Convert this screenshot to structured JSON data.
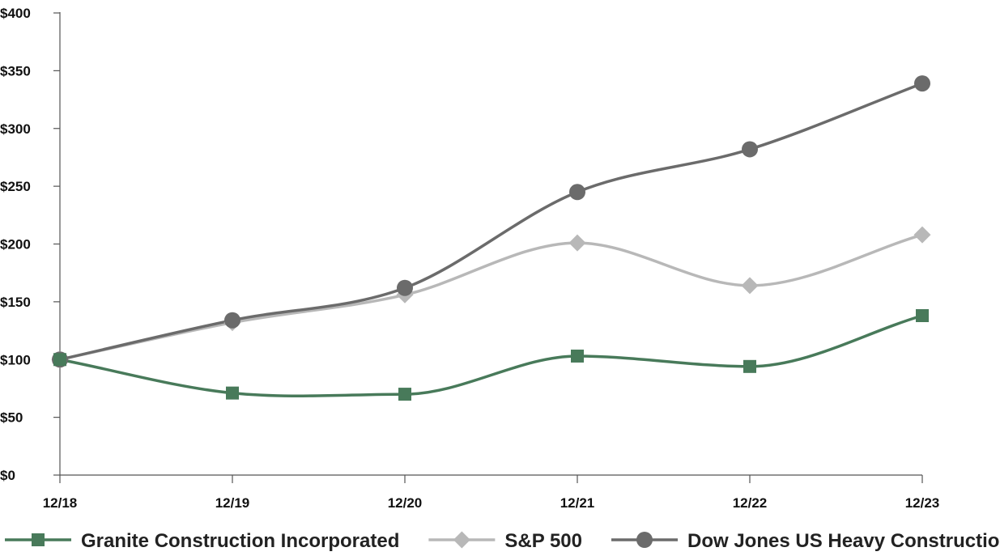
{
  "chart_data": {
    "type": "line",
    "categories": [
      "12/18",
      "12/19",
      "12/20",
      "12/21",
      "12/22",
      "12/23"
    ],
    "y_tick_labels": [
      "$0",
      "$50",
      "$100",
      "$150",
      "$200",
      "$250",
      "$300",
      "$350",
      "$400"
    ],
    "y_ticks": [
      0,
      50,
      100,
      150,
      200,
      250,
      300,
      350,
      400
    ],
    "ylim": [
      0,
      400
    ],
    "grid": false,
    "legend_position": "bottom",
    "series": [
      {
        "name": "Granite Construction Incorporated",
        "values": [
          100,
          71,
          70,
          103,
          94,
          138
        ],
        "color": "#487a5a",
        "marker": "square"
      },
      {
        "name": "S&P 500",
        "values": [
          100,
          132,
          156,
          201,
          164,
          208
        ],
        "color": "#b8b8b8",
        "marker": "diamond"
      },
      {
        "name": "Dow Jones US Heavy Construction",
        "values": [
          100,
          134,
          162,
          245,
          282,
          339
        ],
        "color": "#6b6b6b",
        "marker": "circle"
      }
    ]
  }
}
